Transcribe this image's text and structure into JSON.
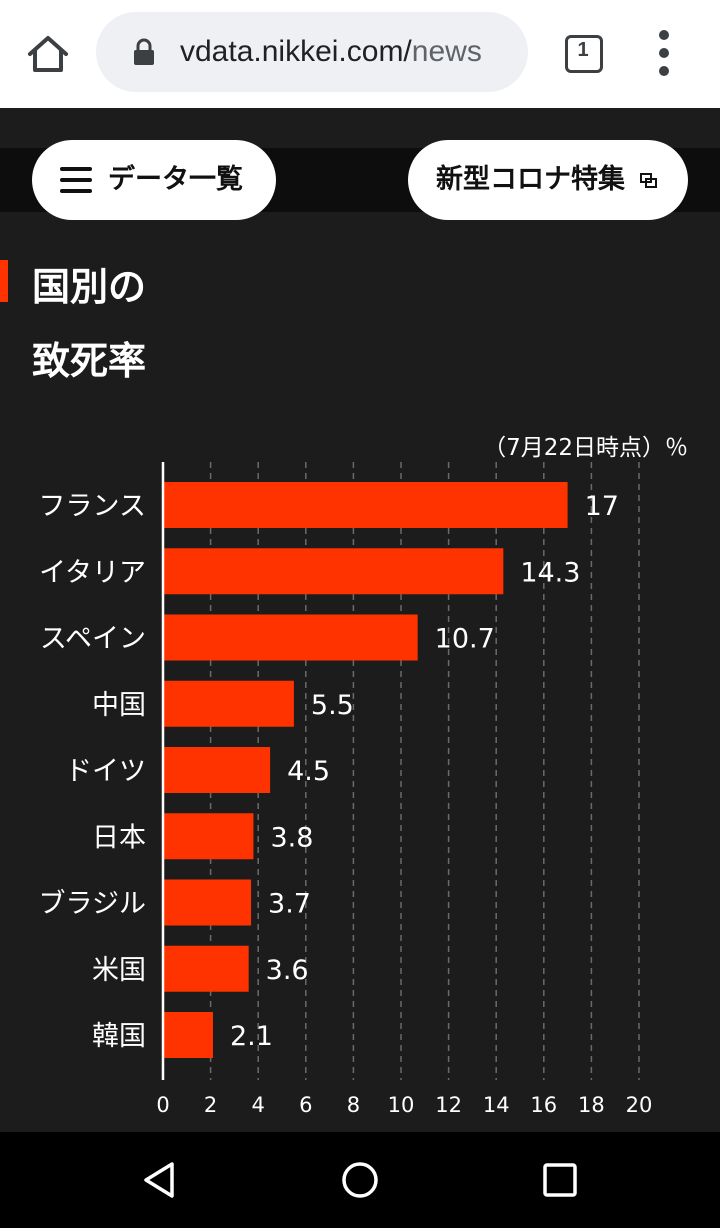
{
  "browser": {
    "url_host": "vdata.nikkei.com/",
    "url_path": "news",
    "tab_count": "1"
  },
  "nav": {
    "data_list_label": "データ一覧",
    "corona_label": "新型コロナ特集"
  },
  "section": {
    "title_line1": "国別の",
    "title_line2": "致死率"
  },
  "chart_data": {
    "type": "bar",
    "orientation": "horizontal",
    "note": "（7月22日時点）％",
    "categories": [
      "フランス",
      "イタリア",
      "スペイン",
      "中国",
      "ドイツ",
      "日本",
      "ブラジル",
      "米国",
      "韓国"
    ],
    "values": [
      17,
      14.3,
      10.7,
      5.5,
      4.5,
      3.8,
      3.7,
      3.6,
      2.1
    ],
    "value_labels": [
      "17",
      "14.3",
      "10.7",
      "5.5",
      "4.5",
      "3.8",
      "3.7",
      "3.6",
      "2.1"
    ],
    "xlim": [
      0,
      20
    ],
    "xticks": [
      0,
      2,
      4,
      6,
      8,
      10,
      12,
      14,
      16,
      18,
      20
    ],
    "grid": "vertical dashed",
    "bar_color": "#ff3300"
  },
  "colors": {
    "background": "#1c1c1c",
    "accent": "#ff3300",
    "text": "#ffffff"
  }
}
